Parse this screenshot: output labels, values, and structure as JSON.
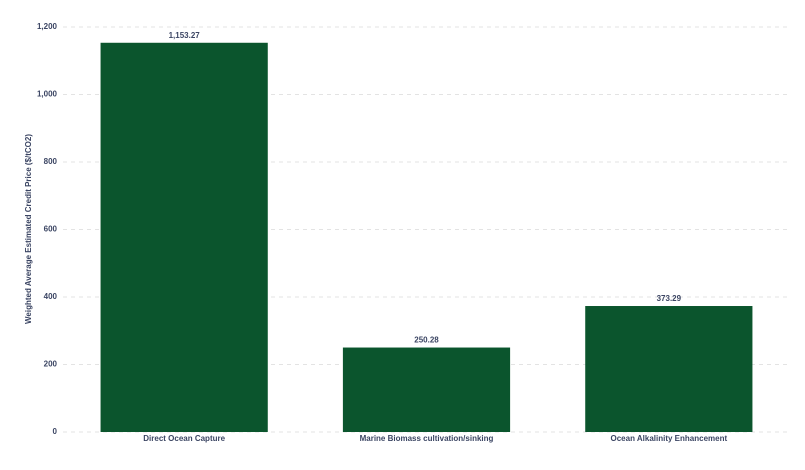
{
  "chart_data": {
    "type": "bar",
    "y_label": "Weighted Average Estimated Credit Price ($/tCO2)",
    "categories": [
      "Direct Ocean Capture",
      "Marine Biomass cultivation/sinking",
      "Ocean Alkalinity Enhancement"
    ],
    "values": [
      1153.27,
      250.28,
      373.29
    ],
    "value_labels": [
      "1,153.27",
      "250.28",
      "373.29"
    ],
    "color": "#0b552d",
    "ylim": [
      0,
      1200
    ],
    "yticks": [
      0,
      200,
      400,
      600,
      800,
      {
        "value": 1000,
        "label": "1,000"
      },
      {
        "value": 1200,
        "label": "1,200"
      }
    ],
    "grid": true
  }
}
